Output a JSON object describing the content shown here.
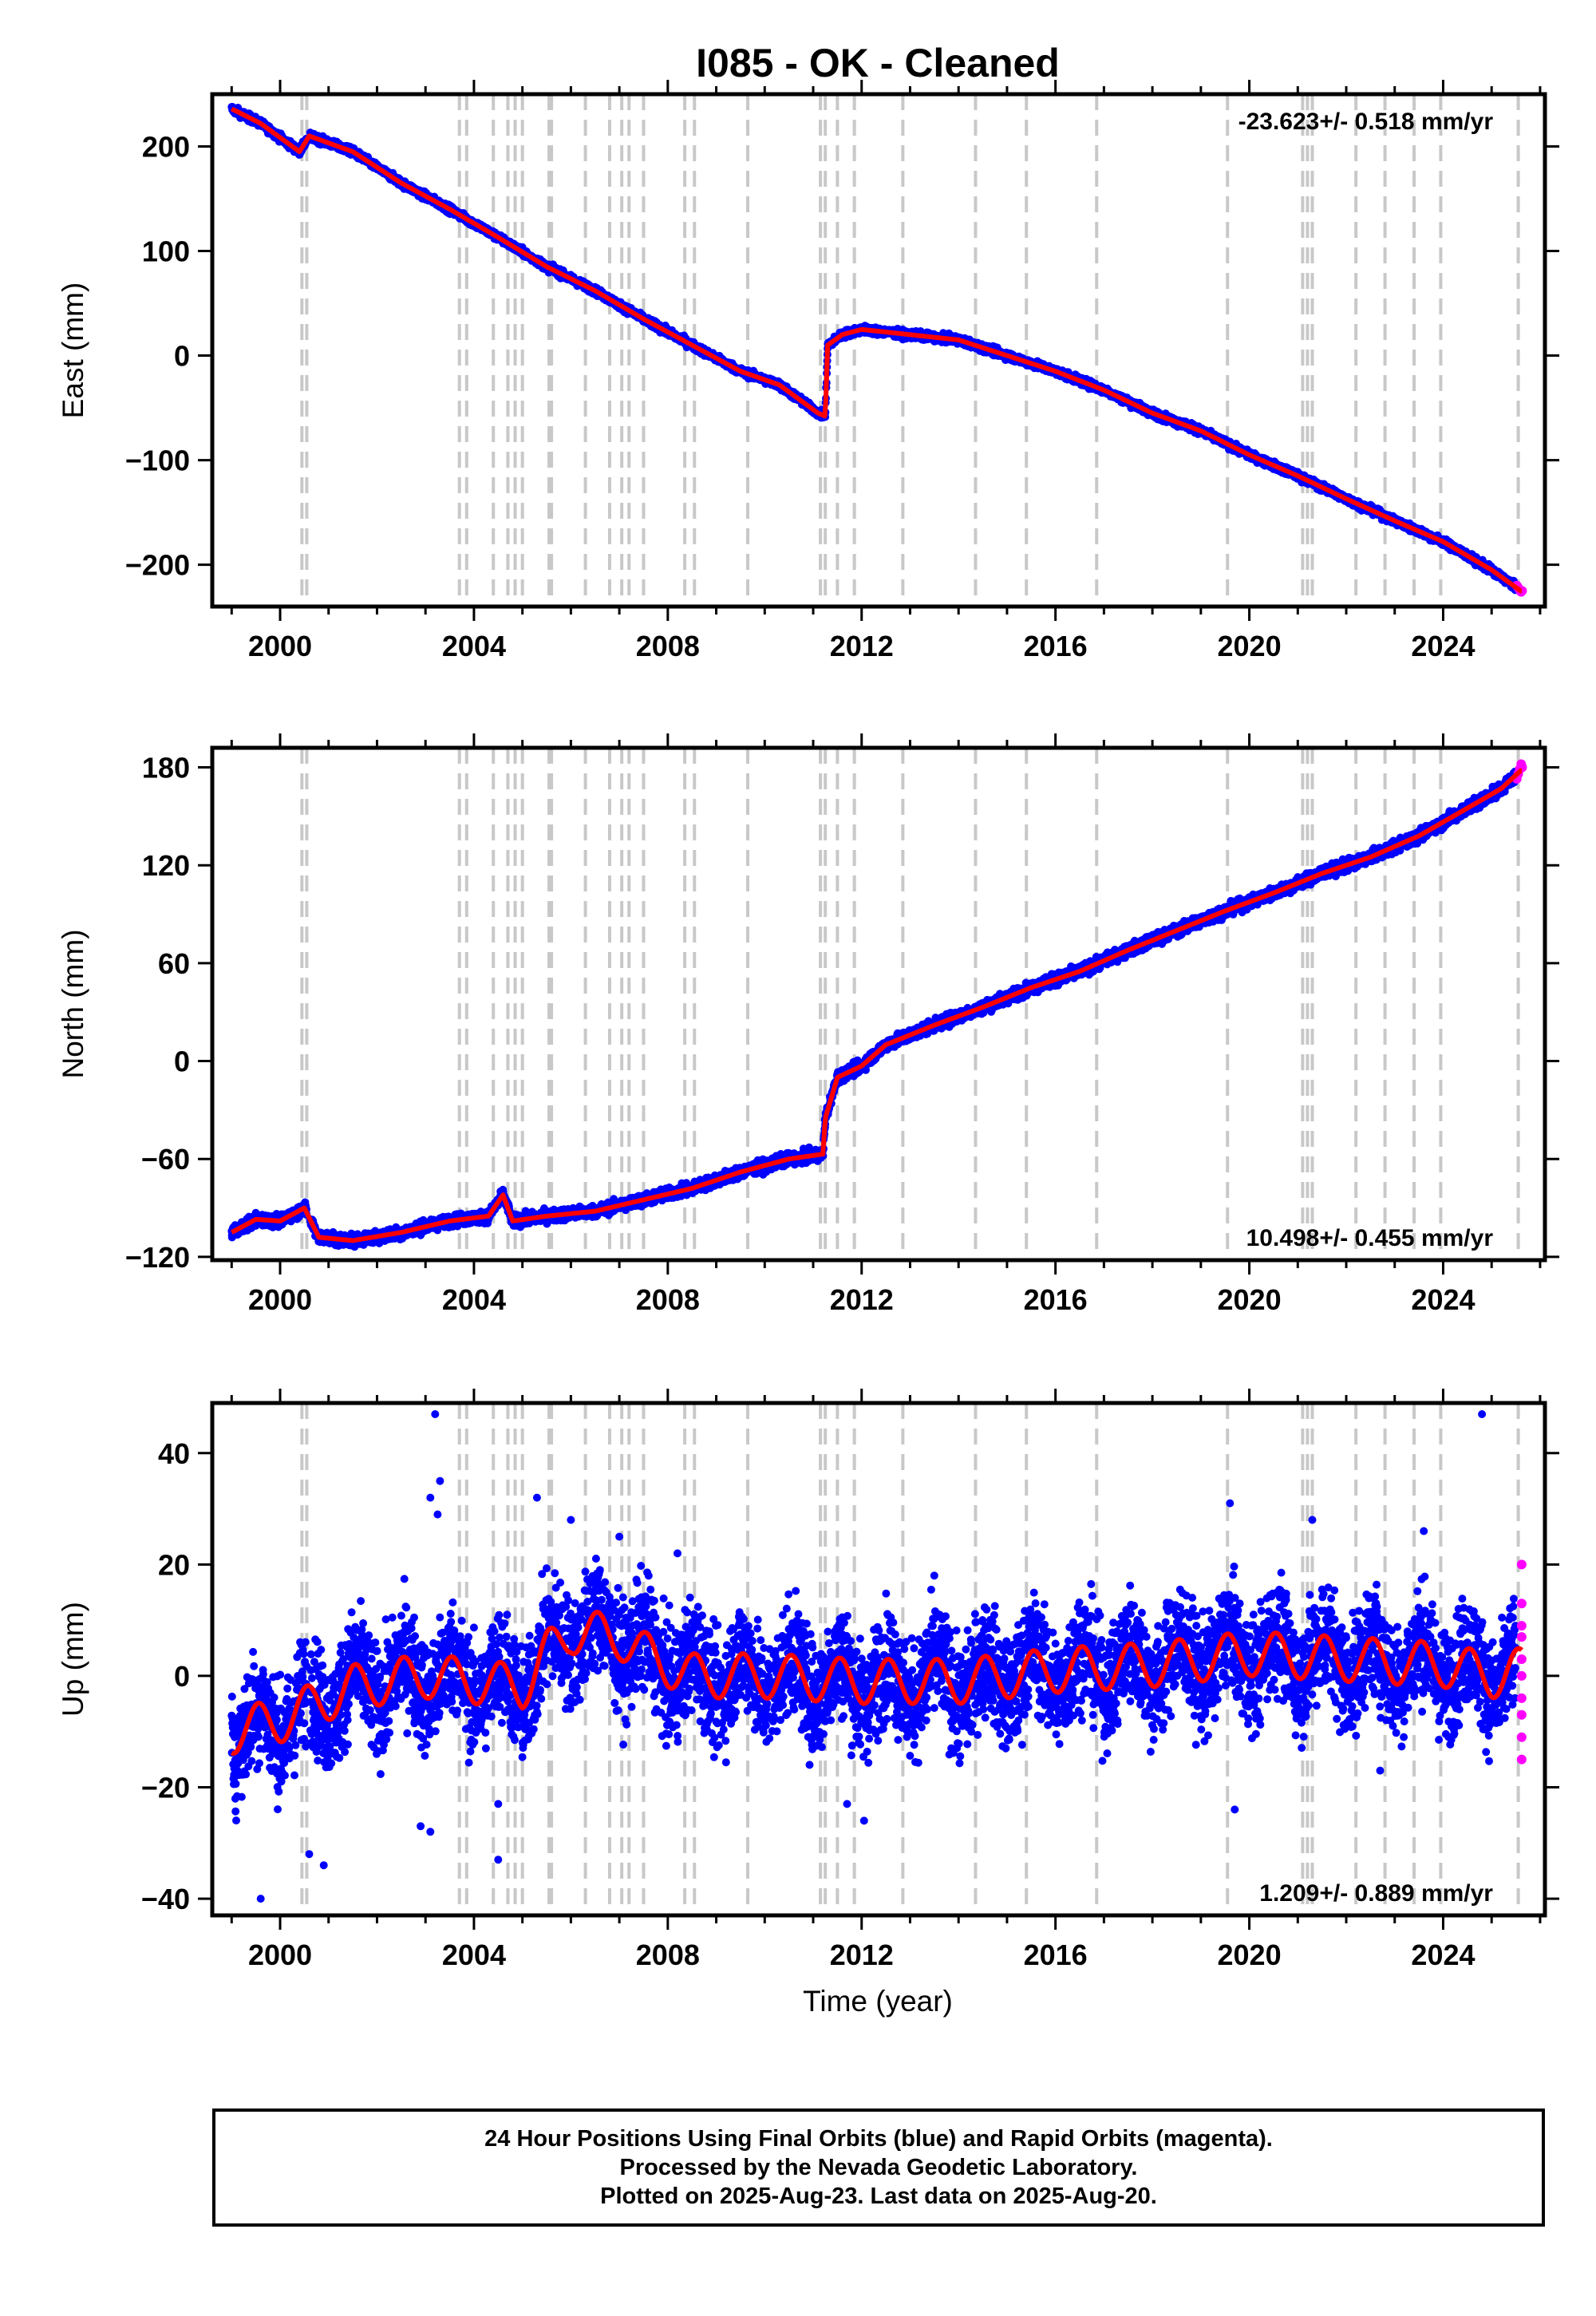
{
  "title": "I085  - OK - Cleaned",
  "xlabel": "Time (year)",
  "colors": {
    "final": "#0000ff",
    "rapid": "#ff00ff",
    "model": "#ff0000",
    "event": "#c8c8c8"
  },
  "event_years": [
    2000.45,
    2000.55,
    2003.7,
    2003.85,
    2004.4,
    2004.7,
    2004.85,
    2005.0,
    2005.55,
    2005.6,
    2006.3,
    2006.8,
    2007.05,
    2007.2,
    2007.5,
    2008.35,
    2008.55,
    2009.65,
    2011.15,
    2011.25,
    2011.5,
    2011.85,
    2012.85,
    2014.35,
    2015.4,
    2016.85,
    2019.55,
    2021.1,
    2021.2,
    2021.3,
    2022.2,
    2022.8,
    2023.4,
    2023.95,
    2025.55
  ],
  "caption": [
    "24 Hour Positions Using Final Orbits (blue) and Rapid Orbits (magenta).",
    "Processed by the Nevada Geodetic Laboratory.",
    "Plotted on 2025-Aug-23. Last data on 2025-Aug-20."
  ],
  "chart_data": [
    {
      "type": "scatter",
      "ylabel": "East (mm)",
      "xlim": [
        1998.6,
        2026.1
      ],
      "ylim": [
        -240,
        250
      ],
      "xticks": [
        2000,
        2004,
        2008,
        2012,
        2016,
        2020,
        2024
      ],
      "yticks": [
        -200,
        -100,
        0,
        100,
        200
      ],
      "velocity": "-23.623+/- 0.518 mm/yr",
      "velocity_position": "top-right",
      "noise": 2.5,
      "anchors": [
        [
          1999.0,
          236
        ],
        [
          1999.6,
          222
        ],
        [
          2000.4,
          195
        ],
        [
          2000.6,
          210
        ],
        [
          2001.5,
          195
        ],
        [
          2002.5,
          165
        ],
        [
          2003.5,
          140
        ],
        [
          2004.5,
          113
        ],
        [
          2005.5,
          85
        ],
        [
          2006.5,
          62
        ],
        [
          2007.5,
          35
        ],
        [
          2008.5,
          10
        ],
        [
          2009.5,
          -15
        ],
        [
          2010.3,
          -28
        ],
        [
          2011.1,
          -55
        ],
        [
          2011.25,
          -58
        ],
        [
          2011.3,
          10
        ],
        [
          2011.6,
          20
        ],
        [
          2012.0,
          25
        ],
        [
          2013.0,
          20
        ],
        [
          2014.0,
          15
        ],
        [
          2015.0,
          0
        ],
        [
          2016.0,
          -15
        ],
        [
          2017.0,
          -33
        ],
        [
          2018.0,
          -55
        ],
        [
          2019.0,
          -72
        ],
        [
          2020.0,
          -95
        ],
        [
          2021.0,
          -115
        ],
        [
          2022.0,
          -137
        ],
        [
          2023.0,
          -158
        ],
        [
          2024.0,
          -178
        ],
        [
          2025.0,
          -205
        ],
        [
          2025.6,
          -225
        ]
      ],
      "rapid_points": [
        [
          2025.52,
          -220
        ],
        [
          2025.55,
          -222
        ],
        [
          2025.58,
          -224
        ],
        [
          2025.61,
          -226
        ],
        [
          2025.63,
          -225
        ]
      ]
    },
    {
      "type": "scatter",
      "ylabel": "North (mm)",
      "xlim": [
        1998.6,
        2026.1
      ],
      "ylim": [
        -122,
        192
      ],
      "xticks": [
        2000,
        2004,
        2008,
        2012,
        2016,
        2020,
        2024
      ],
      "yticks": [
        -120,
        -60,
        0,
        60,
        120,
        180
      ],
      "velocity": "10.498+/- 0.455 mm/yr",
      "velocity_position": "bottom-right",
      "noise": 2.5,
      "anchors": [
        [
          1999.0,
          -105
        ],
        [
          1999.5,
          -97
        ],
        [
          2000.0,
          -98
        ],
        [
          2000.5,
          -90
        ],
        [
          2000.8,
          -108
        ],
        [
          2001.5,
          -110
        ],
        [
          2002.5,
          -105
        ],
        [
          2003.5,
          -98
        ],
        [
          2004.3,
          -95
        ],
        [
          2004.6,
          -82
        ],
        [
          2004.8,
          -98
        ],
        [
          2005.5,
          -95
        ],
        [
          2006.5,
          -92
        ],
        [
          2007.5,
          -85
        ],
        [
          2008.5,
          -78
        ],
        [
          2009.5,
          -68
        ],
        [
          2010.5,
          -60
        ],
        [
          2011.2,
          -57
        ],
        [
          2011.25,
          -35
        ],
        [
          2011.5,
          -10
        ],
        [
          2012.0,
          -3
        ],
        [
          2012.5,
          10
        ],
        [
          2013.5,
          22
        ],
        [
          2014.5,
          33
        ],
        [
          2015.5,
          45
        ],
        [
          2016.5,
          55
        ],
        [
          2017.5,
          68
        ],
        [
          2018.5,
          80
        ],
        [
          2019.5,
          92
        ],
        [
          2020.5,
          103
        ],
        [
          2021.5,
          115
        ],
        [
          2022.5,
          125
        ],
        [
          2023.5,
          138
        ],
        [
          2024.5,
          155
        ],
        [
          2025.2,
          167
        ],
        [
          2025.6,
          178
        ]
      ],
      "rapid_points": [
        [
          2025.52,
          173
        ],
        [
          2025.55,
          176
        ],
        [
          2025.58,
          179
        ],
        [
          2025.61,
          182
        ],
        [
          2025.63,
          180
        ]
      ]
    },
    {
      "type": "scatter",
      "ylabel": "Up (mm)",
      "xlim": [
        1998.6,
        2026.1
      ],
      "ylim": [
        -43,
        49
      ],
      "xticks": [
        2000,
        2004,
        2008,
        2012,
        2016,
        2020,
        2024
      ],
      "yticks": [
        -40,
        -20,
        0,
        20,
        40
      ],
      "velocity": "1.209+/- 0.889 mm/yr",
      "velocity_position": "bottom-right",
      "noise": 7,
      "seasonal_amplitude": 4,
      "anchors": [
        [
          1999.0,
          -10
        ],
        [
          2000.0,
          -8
        ],
        [
          2000.5,
          -6
        ],
        [
          2001.5,
          -2
        ],
        [
          2003.0,
          0
        ],
        [
          2004.0,
          -1
        ],
        [
          2005.0,
          -2
        ],
        [
          2005.5,
          4
        ],
        [
          2006.0,
          8
        ],
        [
          2007.0,
          7
        ],
        [
          2007.5,
          4
        ],
        [
          2008.5,
          0
        ],
        [
          2010.0,
          0
        ],
        [
          2012.0,
          -1
        ],
        [
          2014.0,
          -1
        ],
        [
          2016.0,
          1
        ],
        [
          2018.0,
          2
        ],
        [
          2020.0,
          4
        ],
        [
          2022.0,
          3
        ],
        [
          2024.0,
          2
        ],
        [
          2025.0,
          0
        ],
        [
          2025.6,
          1
        ]
      ],
      "outliers": [
        [
          2003.2,
          47
        ],
        [
          2003.3,
          35
        ],
        [
          2003.1,
          32
        ],
        [
          2003.25,
          29
        ],
        [
          2024.8,
          47
        ],
        [
          1999.6,
          -40
        ],
        [
          2000.6,
          -32
        ],
        [
          2000.9,
          -34
        ],
        [
          2002.9,
          -27
        ],
        [
          2003.1,
          -28
        ],
        [
          2004.5,
          -33
        ],
        [
          2004.5,
          -23
        ],
        [
          2012.05,
          -26
        ],
        [
          2019.7,
          -24
        ],
        [
          2022.7,
          -17
        ],
        [
          2011.7,
          -23
        ],
        [
          2006.0,
          28
        ],
        [
          2007.0,
          25
        ],
        [
          2019.6,
          31
        ],
        [
          2021.3,
          28
        ],
        [
          2023.6,
          26
        ],
        [
          2005.3,
          32
        ],
        [
          2008.2,
          22
        ],
        [
          2013.5,
          18
        ]
      ],
      "rapid_points": [
        [
          2025.62,
          20
        ],
        [
          2025.62,
          13
        ],
        [
          2025.62,
          9
        ],
        [
          2025.62,
          7
        ],
        [
          2025.62,
          3
        ],
        [
          2025.62,
          0
        ],
        [
          2025.62,
          -4
        ],
        [
          2025.62,
          -7
        ],
        [
          2025.62,
          -11
        ],
        [
          2025.62,
          -15
        ]
      ]
    }
  ]
}
